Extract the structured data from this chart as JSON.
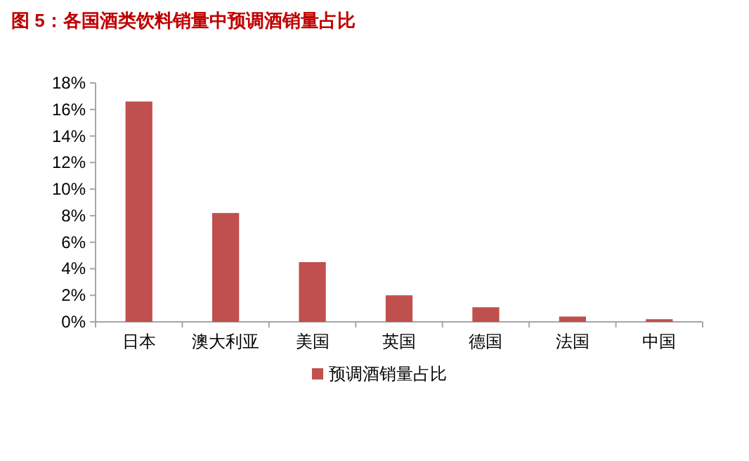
{
  "chart_data": {
    "type": "bar",
    "title": "图 5：各国酒类饮料销量中预调酒销量占比",
    "categories": [
      "日本",
      "澳大利亚",
      "美国",
      "英国",
      "德国",
      "法国",
      "中国"
    ],
    "series": [
      {
        "name": "预调酒销量占比",
        "color": "#c0504d",
        "values": [
          16.6,
          8.2,
          4.5,
          2.0,
          1.1,
          0.4,
          0.2
        ]
      }
    ],
    "ylim": [
      0,
      18
    ],
    "yticks": [
      {
        "value": 0,
        "label": "0%"
      },
      {
        "value": 2,
        "label": "2%"
      },
      {
        "value": 4,
        "label": "4%"
      },
      {
        "value": 6,
        "label": "6%"
      },
      {
        "value": 8,
        "label": "8%"
      },
      {
        "value": 10,
        "label": "10%"
      },
      {
        "value": 12,
        "label": "12%"
      },
      {
        "value": 14,
        "label": "14%"
      },
      {
        "value": 16,
        "label": "16%"
      },
      {
        "value": 18,
        "label": "18%"
      }
    ],
    "grid": false,
    "legend": "bottom"
  }
}
